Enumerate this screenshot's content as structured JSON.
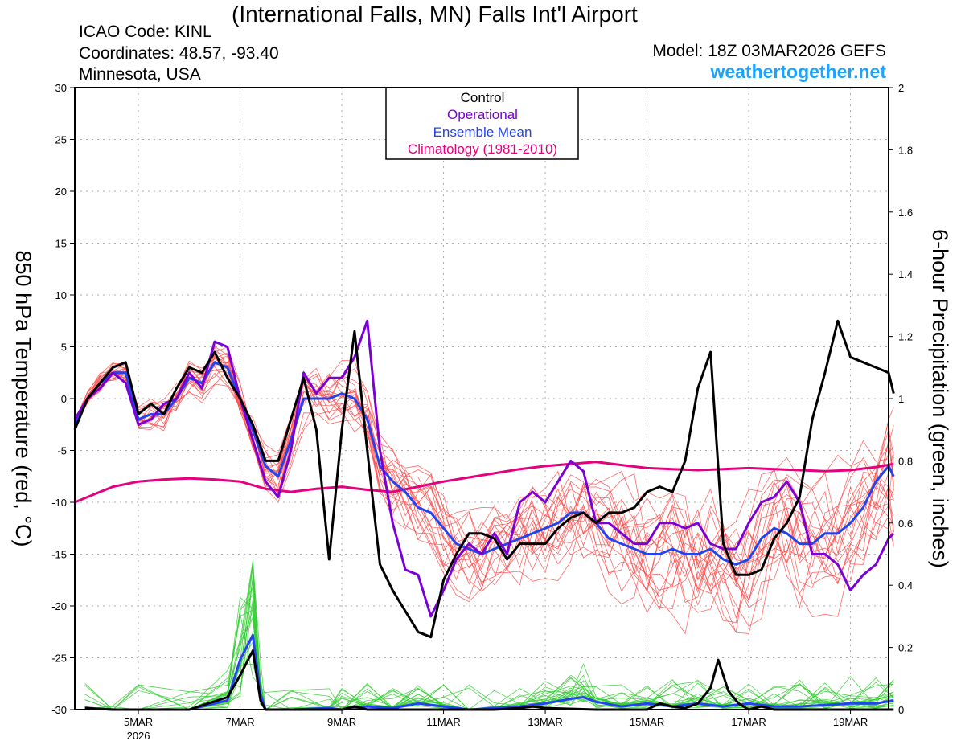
{
  "header": {
    "title": "(International Falls, MN) Falls Int'l Airport",
    "icao": "ICAO Code: KINL",
    "coordinates": "Coordinates: 48.57, -93.40",
    "state": "Minnesota, USA",
    "model": "Model: 18Z 03MAR2026 GEFS",
    "website": "weathertogether.net"
  },
  "colors": {
    "control": "#000000",
    "operational": "#7a00d6",
    "ensemble_mean": "#2244ee",
    "climatology": "#e5007e",
    "members_temp": "#ff4444",
    "members_precip": "#33cc33",
    "website": "#1aa3ff",
    "grid": "#aaaaaa"
  },
  "chart_data": {
    "type": "line",
    "y_left_label": "850 hPa Temperature (red, °C)",
    "y_right_label": "6-hour Precipitation (green, inches)",
    "ylim_left": [
      -30,
      30
    ],
    "ylim_right": [
      0,
      2
    ],
    "xlim_day": [
      3.75,
      19.75
    ],
    "y_left_ticks": [
      30,
      25,
      20,
      15,
      10,
      5,
      0,
      -5,
      -10,
      -15,
      -20,
      -25,
      -30
    ],
    "y_right_ticks": [
      "2",
      "1.8",
      "1.6",
      "1.4",
      "1.2",
      "1",
      "0.8",
      "0.6",
      "0.4",
      "0.2",
      "0"
    ],
    "x_ticks": [
      {
        "day": 5,
        "label": "5MAR",
        "sub": "2026"
      },
      {
        "day": 7,
        "label": "7MAR",
        "sub": ""
      },
      {
        "day": 9,
        "label": "9MAR",
        "sub": ""
      },
      {
        "day": 11,
        "label": "11MAR",
        "sub": ""
      },
      {
        "day": 13,
        "label": "13MAR",
        "sub": ""
      },
      {
        "day": 15,
        "label": "15MAR",
        "sub": ""
      },
      {
        "day": 17,
        "label": "17MAR",
        "sub": ""
      },
      {
        "day": 19,
        "label": "19MAR",
        "sub": ""
      }
    ],
    "grid": true,
    "legend_position": "top-center",
    "legend": [
      "Control",
      "Operational",
      "Ensemble Mean",
      "Climatology (1981-2010)"
    ],
    "temperature": {
      "control": [
        [
          3.75,
          -3
        ],
        [
          4,
          0
        ],
        [
          4.25,
          1.5
        ],
        [
          4.5,
          3
        ],
        [
          4.75,
          3.5
        ],
        [
          5,
          -1.5
        ],
        [
          5.25,
          -0.5
        ],
        [
          5.5,
          -1.5
        ],
        [
          5.75,
          1
        ],
        [
          6,
          3
        ],
        [
          6.25,
          2.5
        ],
        [
          6.5,
          4.5
        ],
        [
          6.75,
          2
        ],
        [
          7,
          0
        ],
        [
          7.25,
          -2.5
        ],
        [
          7.5,
          -6
        ],
        [
          7.75,
          -6
        ],
        [
          8,
          -2
        ],
        [
          8.25,
          2
        ],
        [
          8.5,
          -3
        ],
        [
          8.75,
          -15.5
        ],
        [
          9,
          -3
        ],
        [
          9.25,
          6.5
        ],
        [
          9.5,
          -5
        ],
        [
          9.75,
          -16
        ],
        [
          10,
          -18.5
        ],
        [
          10.25,
          -20.5
        ],
        [
          10.5,
          -22.5
        ],
        [
          10.75,
          -23
        ],
        [
          11,
          -17.5
        ],
        [
          11.25,
          -15
        ],
        [
          11.5,
          -13
        ],
        [
          11.75,
          -13
        ],
        [
          12,
          -13.5
        ],
        [
          12.25,
          -15.5
        ],
        [
          12.5,
          -14
        ],
        [
          12.75,
          -14
        ],
        [
          13,
          -14
        ],
        [
          13.25,
          -12.5
        ],
        [
          13.5,
          -11.5
        ],
        [
          13.75,
          -11
        ],
        [
          14,
          -12
        ],
        [
          14.25,
          -11
        ],
        [
          14.5,
          -11
        ],
        [
          14.75,
          -10.5
        ],
        [
          15,
          -9
        ],
        [
          15.25,
          -8.5
        ],
        [
          15.5,
          -9
        ],
        [
          15.75,
          -6
        ],
        [
          16,
          1
        ],
        [
          16.25,
          4.5
        ],
        [
          16.5,
          -14
        ],
        [
          16.75,
          -17
        ],
        [
          17,
          -17
        ],
        [
          17.25,
          -16.5
        ],
        [
          17.5,
          -13.5
        ],
        [
          17.75,
          -12
        ],
        [
          18,
          -9.5
        ],
        [
          18.25,
          -2
        ],
        [
          18.5,
          2.5
        ],
        [
          18.75,
          7.5
        ],
        [
          19,
          4
        ],
        [
          19.25,
          3.5
        ],
        [
          19.5,
          3
        ],
        [
          19.75,
          2.5
        ],
        [
          19.85,
          0.5
        ]
      ],
      "operational": [
        [
          3.75,
          -2
        ],
        [
          4,
          0
        ],
        [
          4.25,
          1
        ],
        [
          4.5,
          2.5
        ],
        [
          4.75,
          1.5
        ],
        [
          5,
          -2.5
        ],
        [
          5.25,
          -2
        ],
        [
          5.5,
          -0.5
        ],
        [
          5.75,
          0
        ],
        [
          6,
          2.5
        ],
        [
          6.25,
          1
        ],
        [
          6.5,
          5.5
        ],
        [
          6.75,
          5
        ],
        [
          7,
          0
        ],
        [
          7.25,
          -4
        ],
        [
          7.5,
          -8
        ],
        [
          7.75,
          -9.5
        ],
        [
          8,
          -5
        ],
        [
          8.25,
          2.5
        ],
        [
          8.5,
          0.5
        ],
        [
          8.75,
          2
        ],
        [
          9,
          2
        ],
        [
          9.25,
          4
        ],
        [
          9.5,
          7.5
        ],
        [
          9.75,
          -5
        ],
        [
          10,
          -12
        ],
        [
          10.25,
          -16.5
        ],
        [
          10.5,
          -17
        ],
        [
          10.75,
          -21
        ],
        [
          11,
          -18.5
        ],
        [
          11.25,
          -15.5
        ],
        [
          11.5,
          -14
        ],
        [
          11.75,
          -15
        ],
        [
          12,
          -13
        ],
        [
          12.25,
          -15
        ],
        [
          12.5,
          -10
        ],
        [
          12.75,
          -9
        ],
        [
          13,
          -10
        ],
        [
          13.25,
          -8
        ],
        [
          13.5,
          -6
        ],
        [
          13.75,
          -7
        ],
        [
          14,
          -12
        ],
        [
          14.25,
          -12
        ],
        [
          14.5,
          -13
        ],
        [
          14.75,
          -14
        ],
        [
          15,
          -14
        ],
        [
          15.25,
          -12
        ],
        [
          15.5,
          -12
        ],
        [
          15.75,
          -12.5
        ],
        [
          16,
          -12
        ],
        [
          16.25,
          -14
        ],
        [
          16.5,
          -14.5
        ],
        [
          16.75,
          -14.5
        ],
        [
          17,
          -12
        ],
        [
          17.25,
          -10
        ],
        [
          17.5,
          -9.5
        ],
        [
          17.75,
          -8
        ],
        [
          18,
          -10
        ],
        [
          18.25,
          -15
        ],
        [
          18.5,
          -15
        ],
        [
          18.75,
          -16
        ],
        [
          19,
          -18.5
        ],
        [
          19.25,
          -17
        ],
        [
          19.5,
          -16
        ],
        [
          19.75,
          -13.5
        ],
        [
          19.85,
          -13
        ]
      ],
      "ensemble_mean": [
        [
          3.75,
          -2.5
        ],
        [
          4,
          0
        ],
        [
          4.25,
          1.5
        ],
        [
          4.5,
          2.5
        ],
        [
          4.75,
          2.5
        ],
        [
          5,
          -2
        ],
        [
          5.25,
          -1.5
        ],
        [
          5.5,
          -1.5
        ],
        [
          5.75,
          0
        ],
        [
          6,
          2
        ],
        [
          6.25,
          1.5
        ],
        [
          6.5,
          3.5
        ],
        [
          6.75,
          3
        ],
        [
          7,
          0
        ],
        [
          7.25,
          -3
        ],
        [
          7.5,
          -6.5
        ],
        [
          7.75,
          -7.5
        ],
        [
          8,
          -4
        ],
        [
          8.25,
          0
        ],
        [
          8.5,
          0
        ],
        [
          8.75,
          0
        ],
        [
          9,
          0.5
        ],
        [
          9.25,
          0
        ],
        [
          9.5,
          -2
        ],
        [
          9.75,
          -6.5
        ],
        [
          10,
          -8
        ],
        [
          10.25,
          -9
        ],
        [
          10.5,
          -10.5
        ],
        [
          10.75,
          -11
        ],
        [
          11,
          -12.5
        ],
        [
          11.25,
          -14
        ],
        [
          11.5,
          -14.5
        ],
        [
          11.75,
          -15
        ],
        [
          12,
          -14.5
        ],
        [
          12.25,
          -14
        ],
        [
          12.5,
          -13.5
        ],
        [
          12.75,
          -13
        ],
        [
          13,
          -12.5
        ],
        [
          13.25,
          -12
        ],
        [
          13.5,
          -11
        ],
        [
          13.75,
          -11
        ],
        [
          14,
          -12
        ],
        [
          14.25,
          -13.5
        ],
        [
          14.5,
          -14
        ],
        [
          14.75,
          -14.5
        ],
        [
          15,
          -15
        ],
        [
          15.25,
          -15
        ],
        [
          15.5,
          -14.5
        ],
        [
          15.75,
          -15
        ],
        [
          16,
          -15
        ],
        [
          16.25,
          -14.5
        ],
        [
          16.5,
          -15.5
        ],
        [
          16.75,
          -16
        ],
        [
          17,
          -15.5
        ],
        [
          17.25,
          -13.5
        ],
        [
          17.5,
          -12.5
        ],
        [
          17.75,
          -13
        ],
        [
          18,
          -14
        ],
        [
          18.25,
          -14
        ],
        [
          18.5,
          -13
        ],
        [
          18.75,
          -13
        ],
        [
          19,
          -12
        ],
        [
          19.25,
          -10.5
        ],
        [
          19.5,
          -8
        ],
        [
          19.75,
          -6.5
        ],
        [
          19.85,
          -7.5
        ]
      ],
      "climatology": [
        [
          3.75,
          -10
        ],
        [
          4,
          -9.5
        ],
        [
          4.5,
          -8.5
        ],
        [
          5,
          -8
        ],
        [
          5.5,
          -7.8
        ],
        [
          6,
          -7.7
        ],
        [
          6.5,
          -7.8
        ],
        [
          7,
          -8
        ],
        [
          7.5,
          -8.7
        ],
        [
          8,
          -9
        ],
        [
          8.5,
          -8.7
        ],
        [
          9,
          -8.5
        ],
        [
          9.5,
          -8.8
        ],
        [
          10,
          -9
        ],
        [
          10.5,
          -8.5
        ],
        [
          11,
          -8
        ],
        [
          11.5,
          -7.6
        ],
        [
          12,
          -7.2
        ],
        [
          12.5,
          -6.8
        ],
        [
          13,
          -6.5
        ],
        [
          13.5,
          -6.3
        ],
        [
          14,
          -6.1
        ],
        [
          14.5,
          -6.4
        ],
        [
          15,
          -6.7
        ],
        [
          15.5,
          -6.8
        ],
        [
          16,
          -6.9
        ],
        [
          16.5,
          -6.8
        ],
        [
          17,
          -6.7
        ],
        [
          17.5,
          -6.8
        ],
        [
          18,
          -6.9
        ],
        [
          18.5,
          -7
        ],
        [
          19,
          -6.9
        ],
        [
          19.5,
          -6.6
        ],
        [
          19.85,
          -6.3
        ]
      ]
    },
    "precipitation": {
      "control": [
        [
          3.95,
          0.005
        ],
        [
          4.5,
          0
        ],
        [
          5,
          0
        ],
        [
          6,
          0
        ],
        [
          6.75,
          0.04
        ],
        [
          7,
          0.11
        ],
        [
          7.25,
          0.19
        ],
        [
          7.4,
          0.03
        ],
        [
          7.5,
          0
        ],
        [
          8,
          0
        ],
        [
          9,
          0
        ],
        [
          9.25,
          0.01
        ],
        [
          9.5,
          0
        ],
        [
          10,
          0
        ],
        [
          11,
          0
        ],
        [
          12,
          0
        ],
        [
          12.5,
          0.005
        ],
        [
          12.75,
          0.01
        ],
        [
          13,
          0.005
        ],
        [
          14,
          0
        ],
        [
          14.5,
          0
        ],
        [
          15,
          0
        ],
        [
          15.25,
          0.02
        ],
        [
          15.5,
          0.01
        ],
        [
          15.75,
          0.005
        ],
        [
          16,
          0.02
        ],
        [
          16.25,
          0.07
        ],
        [
          16.4,
          0.16
        ],
        [
          16.6,
          0.06
        ],
        [
          16.8,
          0.02
        ],
        [
          17,
          0
        ],
        [
          17.25,
          0.01
        ],
        [
          17.5,
          0
        ],
        [
          18,
          0
        ],
        [
          19,
          0
        ],
        [
          19.85,
          0
        ]
      ],
      "ensemble_mean": [
        [
          3.95,
          0.005
        ],
        [
          4.5,
          0
        ],
        [
          5,
          0
        ],
        [
          6,
          0
        ],
        [
          6.75,
          0.03
        ],
        [
          7,
          0.16
        ],
        [
          7.25,
          0.24
        ],
        [
          7.4,
          0.05
        ],
        [
          7.5,
          0
        ],
        [
          8,
          0
        ],
        [
          8.75,
          0.005
        ],
        [
          9,
          0
        ],
        [
          9.5,
          0.01
        ],
        [
          10,
          0.005
        ],
        [
          10.5,
          0.02
        ],
        [
          11,
          0.01
        ],
        [
          11.5,
          0
        ],
        [
          12,
          0.005
        ],
        [
          12.5,
          0.01
        ],
        [
          13,
          0.02
        ],
        [
          13.5,
          0.035
        ],
        [
          13.75,
          0.04
        ],
        [
          14,
          0.025
        ],
        [
          14.5,
          0.01
        ],
        [
          15,
          0.02
        ],
        [
          15.5,
          0.01
        ],
        [
          16,
          0.02
        ],
        [
          16.5,
          0.01
        ],
        [
          17,
          0.02
        ],
        [
          17.5,
          0.01
        ],
        [
          18,
          0.01
        ],
        [
          18.5,
          0.015
        ],
        [
          19,
          0.02
        ],
        [
          19.5,
          0.02
        ],
        [
          19.85,
          0.03
        ]
      ]
    }
  }
}
